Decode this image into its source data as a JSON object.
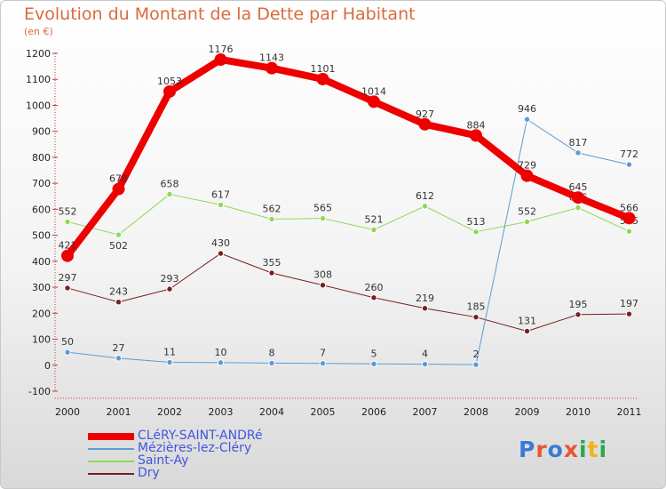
{
  "title": "Evolution du Montant de la Dette par Habitant",
  "subtitle": "(en €)",
  "logo": {
    "text": "Proxiti",
    "letter_colors": [
      "#3a7bd5",
      "#e8552f",
      "#3a7bd5",
      "#e8552f",
      "#2aa84a",
      "#f0b41b",
      "#2aa84a"
    ]
  },
  "chart_data": {
    "type": "line",
    "x": [
      "2000",
      "2001",
      "2002",
      "2003",
      "2004",
      "2005",
      "2006",
      "2007",
      "2008",
      "2009",
      "2010",
      "2011"
    ],
    "ylim": [
      -100,
      1200
    ],
    "yticks": [
      -100,
      0,
      100,
      200,
      300,
      400,
      500,
      600,
      700,
      800,
      900,
      1000,
      1100,
      1200
    ],
    "grid": false,
    "legend_position": "bottom-left",
    "series": [
      {
        "name": "Saint-Ay",
        "color": "#90d858",
        "width": 1,
        "values": [
          552,
          502,
          658,
          617,
          562,
          565,
          521,
          612,
          513,
          552,
          606,
          515
        ],
        "labels": [
          "552",
          "502",
          "658",
          "617",
          "562",
          "565",
          "521",
          "612",
          "513",
          "552",
          "606",
          "515"
        ],
        "label_pos": [
          "above",
          "below",
          "above",
          "above",
          "above",
          "above",
          "above",
          "above",
          "above",
          "above",
          "above",
          "above"
        ]
      },
      {
        "name": "Dry",
        "color": "#7a1e1e",
        "width": 1,
        "values": [
          297,
          243,
          293,
          430,
          355,
          308,
          260,
          219,
          185,
          131,
          195,
          197
        ],
        "labels": [
          "297",
          "243",
          "293",
          "430",
          "355",
          "308",
          "260",
          "219",
          "185",
          "131",
          "195",
          "197"
        ],
        "label_pos": [
          "above",
          "above",
          "above",
          "above",
          "above",
          "above",
          "above",
          "above",
          "above",
          "above",
          "above",
          "above"
        ]
      },
      {
        "name": "Mézières-lez-Cléry",
        "color": "#5b9bd5",
        "width": 1,
        "values": [
          50,
          27,
          11,
          10,
          8,
          7,
          5,
          4,
          2,
          946,
          817,
          772
        ],
        "labels": [
          "50",
          "27",
          "11",
          "10",
          "8",
          "7",
          "5",
          "4",
          "2",
          "946",
          "817",
          "772"
        ],
        "label_pos": [
          "above",
          "above",
          "above",
          "above",
          "above",
          "above",
          "above",
          "above",
          "above",
          "above",
          "above",
          "above"
        ]
      },
      {
        "name": "CLéRY-SAINT-ANDRé",
        "color": "#ee0000",
        "width": 8,
        "values": [
          421,
          678,
          1053,
          1176,
          1143,
          1101,
          1014,
          927,
          884,
          729,
          645,
          566
        ],
        "labels": [
          "421",
          "678",
          "1053",
          "1176",
          "1143",
          "1101",
          "1014",
          "927",
          "884",
          "729",
          "645",
          "566"
        ],
        "label_pos": [
          "above",
          "above",
          "above",
          "above",
          "above",
          "above",
          "above",
          "above",
          "above",
          "above",
          "above",
          "above"
        ]
      }
    ],
    "legend_order": [
      "CLéRY-SAINT-ANDRé",
      "Mézières-lez-Cléry",
      "Saint-Ay",
      "Dry"
    ]
  }
}
